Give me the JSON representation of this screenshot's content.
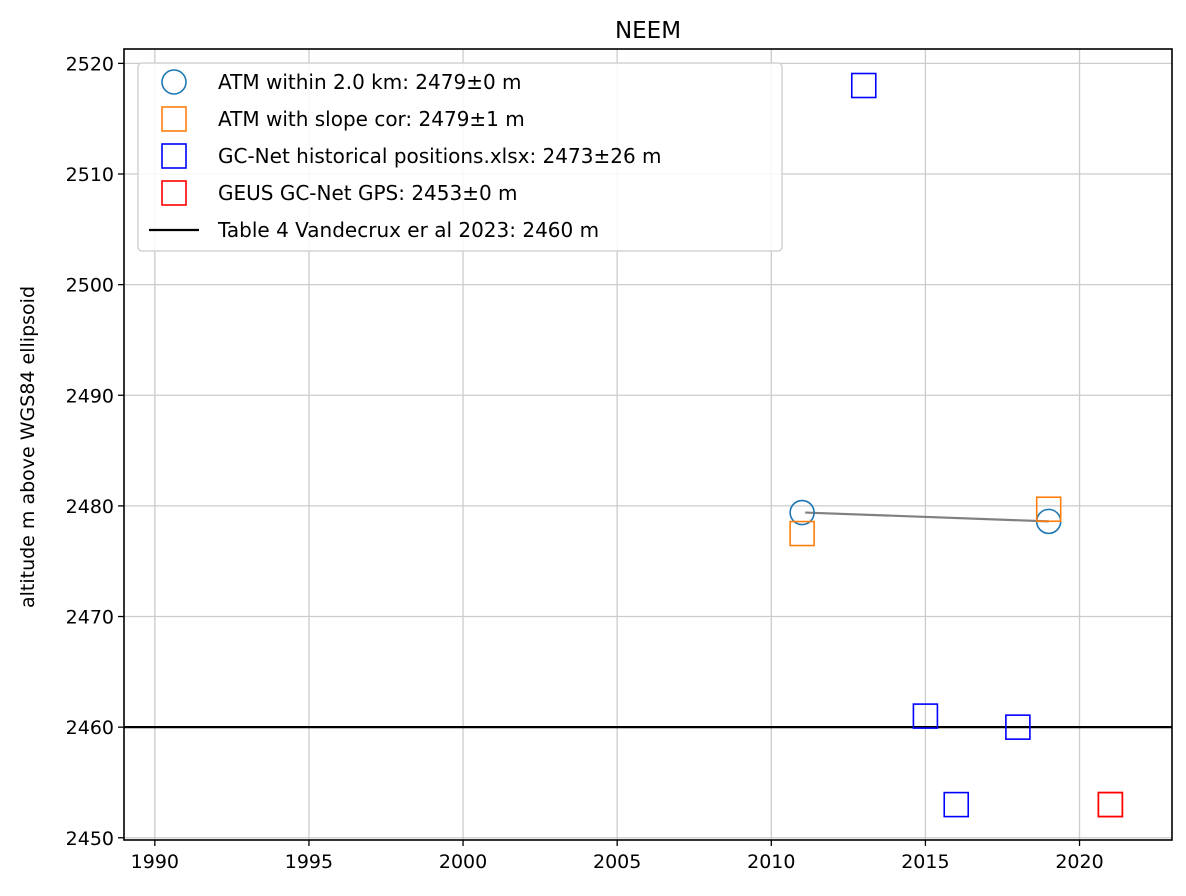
{
  "chart_data": {
    "type": "scatter",
    "title": "NEEM",
    "xlabel": "",
    "ylabel": "altitude m above WGS84 ellipsoid",
    "xlim": [
      1989,
      2023
    ],
    "ylim": [
      2449.8,
      2521.3
    ],
    "xticks": [
      1990,
      1995,
      2000,
      2005,
      2010,
      2015,
      2020
    ],
    "yticks": [
      2450,
      2460,
      2470,
      2480,
      2490,
      2500,
      2510,
      2520
    ],
    "grid": true,
    "legend_position": "upper-left",
    "series": [
      {
        "name": "ATM within 2.0 km: 2479±0 m",
        "marker": "circle",
        "color": "#1f77b4",
        "x": [
          2011,
          2019
        ],
        "y": [
          2479.4,
          2478.6
        ]
      },
      {
        "name": "ATM with slope cor: 2479±1 m",
        "marker": "square",
        "color": "#ff7f0e",
        "x": [
          2011,
          2019
        ],
        "y": [
          2477.5,
          2479.7
        ]
      },
      {
        "name": "GC-Net historical positions.xlsx: 2473±26 m",
        "marker": "square",
        "color": "#0000ff",
        "x": [
          2013,
          2015,
          2016,
          2018
        ],
        "y": [
          2518,
          2461,
          2453,
          2460
        ]
      },
      {
        "name": "GEUS GC-Net GPS: 2453±0 m",
        "marker": "square",
        "color": "#ff0000",
        "x": [
          2021,
          2021
        ],
        "y": [
          2453,
          2453
        ]
      }
    ],
    "trend_line": {
      "color": "#808080",
      "x": [
        2011.1,
        2019
      ],
      "y": [
        2479.4,
        2478.6
      ]
    },
    "reference_line": {
      "name": "Table 4 Vandecrux er al 2023: 2460 m",
      "color": "#000000",
      "y": 2460
    }
  }
}
